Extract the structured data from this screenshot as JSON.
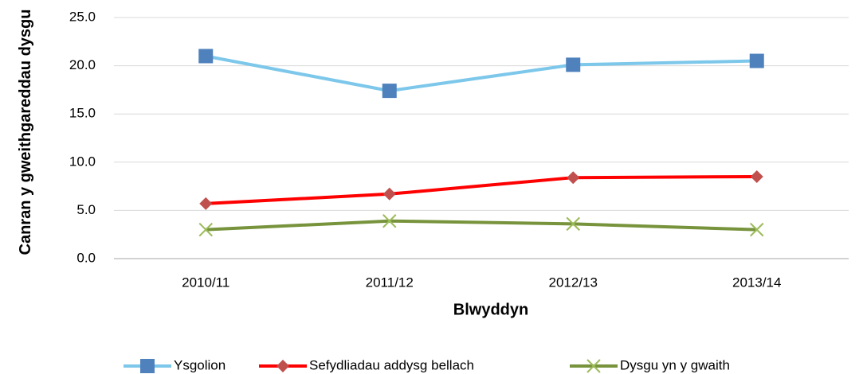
{
  "chart_data": {
    "type": "line",
    "y_label": "Canran y gweithgareddau dysgu",
    "x_label": "Blwyddyn",
    "categories": [
      "2010/11",
      "2011/12",
      "2012/13",
      "2013/14"
    ],
    "series": [
      {
        "name": "Ysgolion",
        "color": "#7cc7ea",
        "marker_color": "#4f81bd",
        "marker": "square",
        "values": [
          21.0,
          17.4,
          20.1,
          20.5
        ]
      },
      {
        "name": "Sefydliadau addysg bellach",
        "color": "#ff0000",
        "marker_color": "#c0504d",
        "marker": "diamond",
        "values": [
          5.7,
          6.7,
          8.4,
          8.5
        ]
      },
      {
        "name": "Dysgu yn y gwaith",
        "color": "#77933c",
        "marker_color": "#9bbb59",
        "marker": "x",
        "values": [
          3.0,
          3.9,
          3.6,
          3.0
        ]
      }
    ],
    "ylim": [
      0,
      25
    ],
    "yticks": [
      {
        "value": 0,
        "label": "0.0"
      },
      {
        "value": 5,
        "label": "5.0"
      },
      {
        "value": 10,
        "label": "10.0"
      },
      {
        "value": 15,
        "label": "15.0"
      },
      {
        "value": 20,
        "label": "20.0"
      },
      {
        "value": 25,
        "label": "25.0"
      }
    ],
    "grid": true,
    "legend": "bottom"
  }
}
